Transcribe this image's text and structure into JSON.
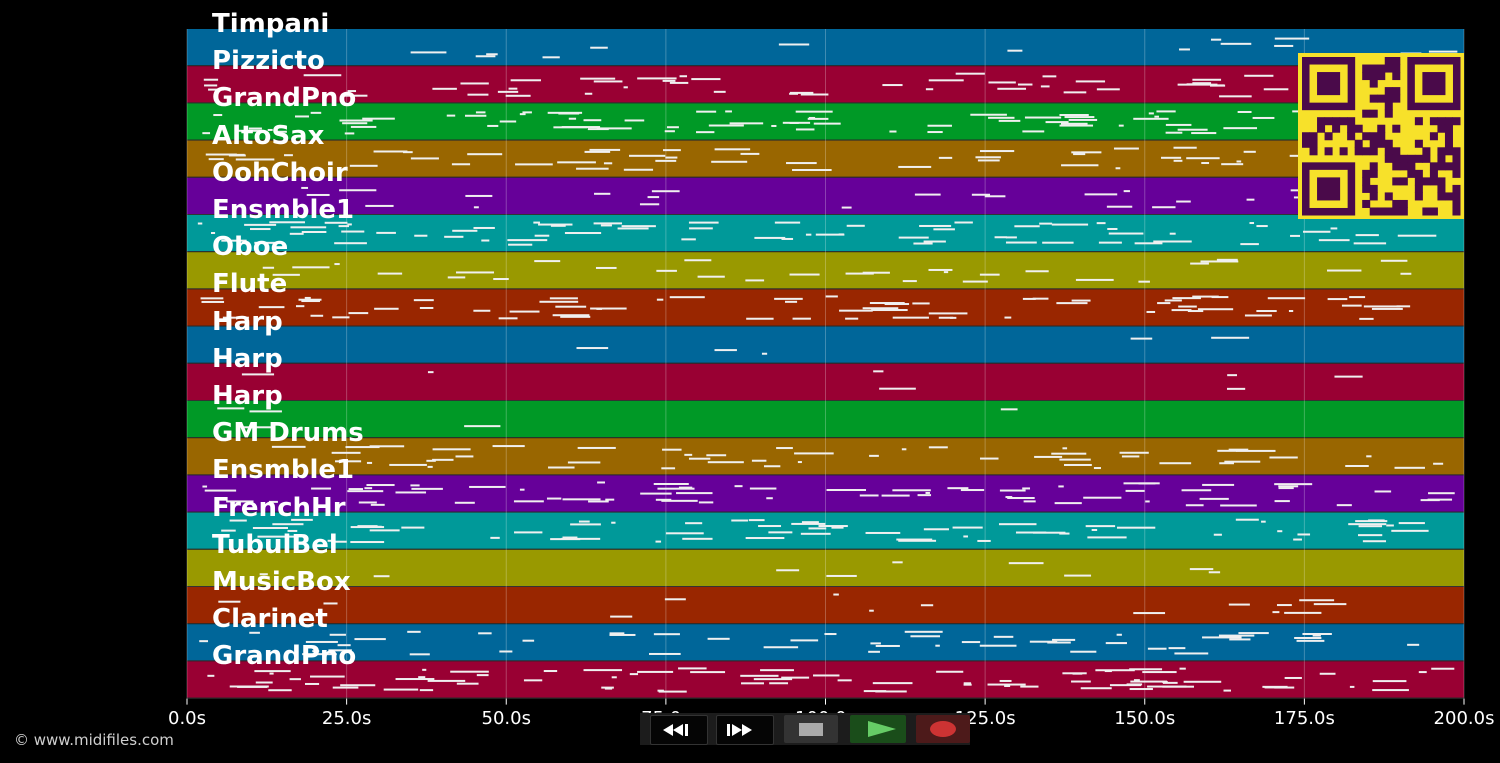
{
  "lanes": [
    {
      "name": "Timpani",
      "color": "#006699",
      "density": 0.15
    },
    {
      "name": "Pizzicto",
      "color": "#990033",
      "density": 0.55
    },
    {
      "name": "GrandPno",
      "color": "#009926",
      "density": 0.95
    },
    {
      "name": "AltoSax",
      "color": "#996600",
      "density": 0.6
    },
    {
      "name": "OohChoir",
      "color": "#660099",
      "density": 0.3
    },
    {
      "name": "Ensmble1",
      "color": "#009999",
      "density": 0.8
    },
    {
      "name": "Oboe",
      "color": "#999900",
      "density": 0.35
    },
    {
      "name": "Flute",
      "color": "#992600",
      "density": 0.75
    },
    {
      "name": "Harp",
      "color": "#006699",
      "density": 0.05
    },
    {
      "name": "Harp",
      "color": "#990033",
      "density": 0.08
    },
    {
      "name": "Harp",
      "color": "#009926",
      "density": 0.05
    },
    {
      "name": "GM Drums",
      "color": "#996600",
      "density": 0.55
    },
    {
      "name": "Ensmble1",
      "color": "#660099",
      "density": 0.75
    },
    {
      "name": "FrenchHr",
      "color": "#009999",
      "density": 0.75
    },
    {
      "name": "TubulBel",
      "color": "#999900",
      "density": 0.1
    },
    {
      "name": "MusicBox",
      "color": "#992600",
      "density": 0.15
    },
    {
      "name": "Clarinet",
      "color": "#006699",
      "density": 0.55
    },
    {
      "name": "GrandPno",
      "color": "#990033",
      "density": 0.9
    }
  ],
  "time_axis": {
    "ticks": [
      "0.0s",
      "25.0s",
      "50.0s",
      "75.0s",
      "100.0s",
      "125.0s",
      "150.0s",
      "175.0s",
      "200.0s"
    ],
    "max_seconds": 200
  },
  "copyright": "© www.midifiles.com",
  "transport": {
    "rewind": "rewind-icon",
    "fast_forward": "fast-forward-icon",
    "stop": "stop-icon",
    "play": "play-icon",
    "record": "record-icon"
  },
  "colors": {
    "background": "#000000",
    "note": "#f0f0f0",
    "qr_background": "#f7e12a",
    "qr_foreground": "#4a0a4a"
  }
}
